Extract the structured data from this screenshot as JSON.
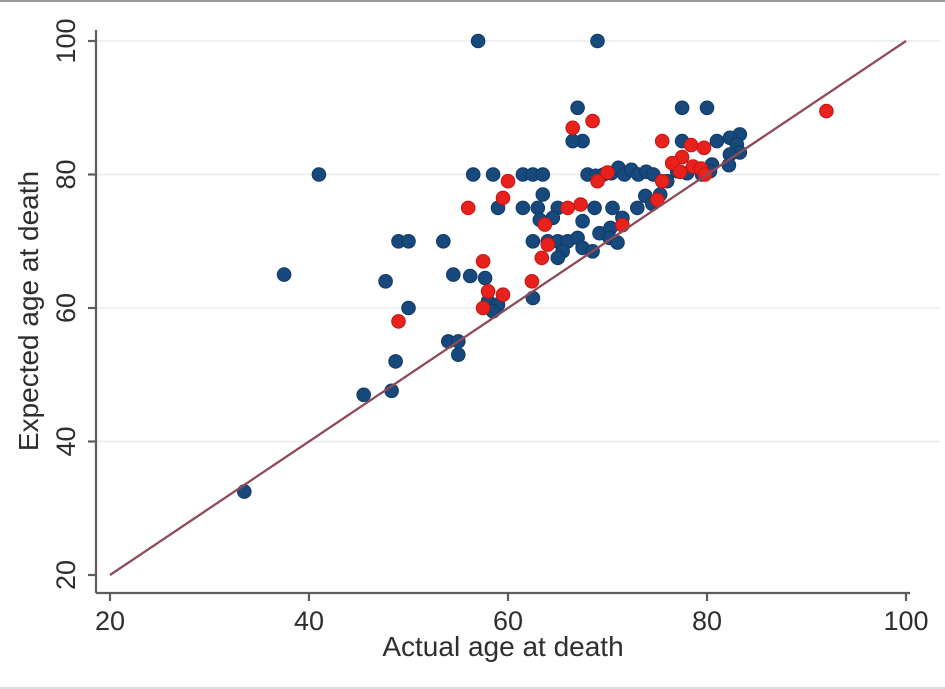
{
  "figure": {
    "background": "#ffffff",
    "top_border_color": "#9b9b9b",
    "bottom_border_color": "#dcdcdc"
  },
  "chart_data": {
    "type": "scatter",
    "title": "",
    "xlabel": "Actual age at death",
    "ylabel": "Expected age at death",
    "xlim": [
      20,
      103
    ],
    "ylim": [
      20,
      103
    ],
    "x_ticks": [
      20,
      40,
      60,
      80,
      100
    ],
    "y_ticks": [
      20,
      40,
      60,
      80,
      100
    ],
    "grid": "horizontal-only",
    "gridline_color": "#e8ebed",
    "axis_color": "#5c5c5c",
    "tick_label_color": "#2e2e2e",
    "legend_position": "none",
    "series": [
      {
        "name": "blue-series",
        "marker": "circle",
        "color": "#17497c",
        "edge_color": "#0f3a66",
        "points": [
          [
            57,
            100
          ],
          [
            69,
            100
          ],
          [
            67,
            90
          ],
          [
            77.5,
            90
          ],
          [
            80,
            90
          ],
          [
            41,
            80
          ],
          [
            83.3,
            86
          ],
          [
            82.3,
            85.5
          ],
          [
            81,
            85
          ],
          [
            77.5,
            85
          ],
          [
            67.5,
            85
          ],
          [
            66.5,
            85
          ],
          [
            83,
            84.5
          ],
          [
            83.3,
            83.3
          ],
          [
            82.3,
            83
          ],
          [
            82.2,
            81.4
          ],
          [
            80.5,
            81.5
          ],
          [
            56.5,
            80
          ],
          [
            58.5,
            80
          ],
          [
            61.5,
            80
          ],
          [
            62.5,
            80
          ],
          [
            63.5,
            80
          ],
          [
            68,
            80
          ],
          [
            68.8,
            79.8
          ],
          [
            69.6,
            80
          ],
          [
            70.4,
            80.2
          ],
          [
            71.1,
            81
          ],
          [
            71.7,
            80
          ],
          [
            72.4,
            80.7
          ],
          [
            73.1,
            80
          ],
          [
            73.9,
            80.4
          ],
          [
            74.6,
            80
          ],
          [
            77,
            80.5
          ],
          [
            78,
            80.2
          ],
          [
            79.5,
            80
          ],
          [
            80.3,
            80.5
          ],
          [
            76,
            79
          ],
          [
            75.3,
            77
          ],
          [
            73.8,
            76.8
          ],
          [
            74.5,
            75.6
          ],
          [
            63.5,
            77
          ],
          [
            59,
            75
          ],
          [
            61.5,
            75
          ],
          [
            63,
            75
          ],
          [
            65,
            75
          ],
          [
            68.7,
            75
          ],
          [
            70.5,
            75
          ],
          [
            73,
            75
          ],
          [
            71.5,
            73.5
          ],
          [
            67.5,
            73
          ],
          [
            64.5,
            73.5
          ],
          [
            63.2,
            73.2
          ],
          [
            69.2,
            71.2
          ],
          [
            70.3,
            72
          ],
          [
            70.2,
            70.5
          ],
          [
            71,
            69.8
          ],
          [
            62.5,
            70
          ],
          [
            64,
            70
          ],
          [
            65,
            70
          ],
          [
            66,
            70
          ],
          [
            67,
            70.5
          ],
          [
            67.5,
            69
          ],
          [
            68.5,
            68.5
          ],
          [
            65.5,
            68.5
          ],
          [
            65,
            67.5
          ],
          [
            49,
            70
          ],
          [
            50,
            70
          ],
          [
            53.5,
            70
          ],
          [
            37.5,
            65
          ],
          [
            47.7,
            64
          ],
          [
            54.5,
            65
          ],
          [
            56.2,
            64.8
          ],
          [
            57.7,
            64.5
          ],
          [
            62.5,
            61.5
          ],
          [
            58,
            61
          ],
          [
            59,
            60.5
          ],
          [
            58.5,
            59.5
          ],
          [
            50,
            60
          ],
          [
            54,
            55
          ],
          [
            55,
            55
          ],
          [
            55,
            53
          ],
          [
            48.7,
            52
          ],
          [
            45.5,
            47
          ],
          [
            48.3,
            47.6
          ],
          [
            33.5,
            32.5
          ]
        ]
      },
      {
        "name": "red-series",
        "marker": "circle",
        "color": "#e8211d",
        "edge_color": "#c01715",
        "points": [
          [
            92,
            89.5
          ],
          [
            68.5,
            88
          ],
          [
            66.5,
            87
          ],
          [
            75.5,
            85
          ],
          [
            78.4,
            84.4
          ],
          [
            79.7,
            84
          ],
          [
            77.5,
            82.6
          ],
          [
            76.5,
            81.7
          ],
          [
            78.6,
            81.2
          ],
          [
            79.4,
            80.9
          ],
          [
            77.3,
            80.4
          ],
          [
            79.8,
            80
          ],
          [
            70,
            80.3
          ],
          [
            69,
            79
          ],
          [
            60,
            79
          ],
          [
            75.5,
            79
          ],
          [
            59.5,
            76.5
          ],
          [
            56,
            75
          ],
          [
            66,
            75
          ],
          [
            67.3,
            75.5
          ],
          [
            75,
            76.2
          ],
          [
            71.5,
            72.4
          ],
          [
            63.7,
            72.5
          ],
          [
            64,
            69.5
          ],
          [
            63.4,
            67.5
          ],
          [
            62.4,
            64
          ],
          [
            57.5,
            67
          ],
          [
            58,
            62.5
          ],
          [
            59.5,
            62
          ],
          [
            57.5,
            60
          ],
          [
            49,
            58
          ]
        ]
      }
    ],
    "reference_line": {
      "from": [
        20,
        20
      ],
      "to": [
        100,
        100
      ],
      "color": "#8f4a58"
    }
  }
}
